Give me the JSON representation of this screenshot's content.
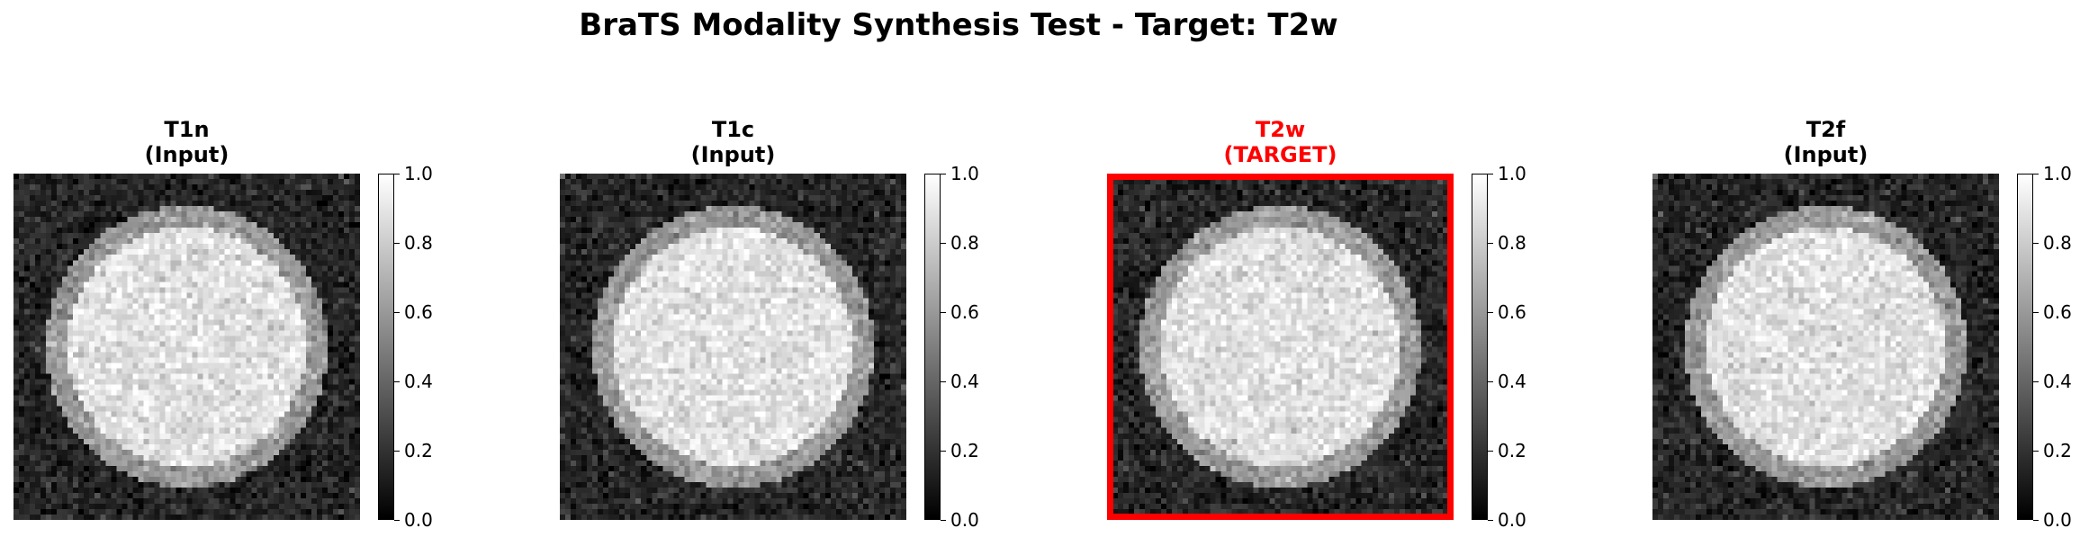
{
  "figure": {
    "title": "BraTS Modality Synthesis Test - Target: T2w",
    "target_color": "#ff0000"
  },
  "panels": [
    {
      "title_line1": "T1n",
      "title_line2": "(Input)",
      "is_target": false,
      "seed": 11
    },
    {
      "title_line1": "T1c",
      "title_line2": "(Input)",
      "is_target": false,
      "seed": 23
    },
    {
      "title_line1": "T2w",
      "title_line2": "(TARGET)",
      "is_target": true,
      "seed": 37
    },
    {
      "title_line1": "T2f",
      "title_line2": "(Input)",
      "is_target": false,
      "seed": 53
    }
  ],
  "colorbar": {
    "ticks": [
      "0.0",
      "0.2",
      "0.4",
      "0.6",
      "0.8",
      "1.0"
    ],
    "range": [
      0.0,
      1.0
    ],
    "colormap": "gray"
  },
  "chart_data": {
    "type": "heatmap",
    "layout": "4 image panels, each with its own colorbar",
    "colormap": "gray",
    "value_range": [
      0.0,
      1.0
    ],
    "grid_size": [
      64,
      64
    ],
    "structure": {
      "background_mean": 0.15,
      "ring_mean": 0.6,
      "core_mean": 0.88,
      "noise_std": 0.07
    }
  }
}
